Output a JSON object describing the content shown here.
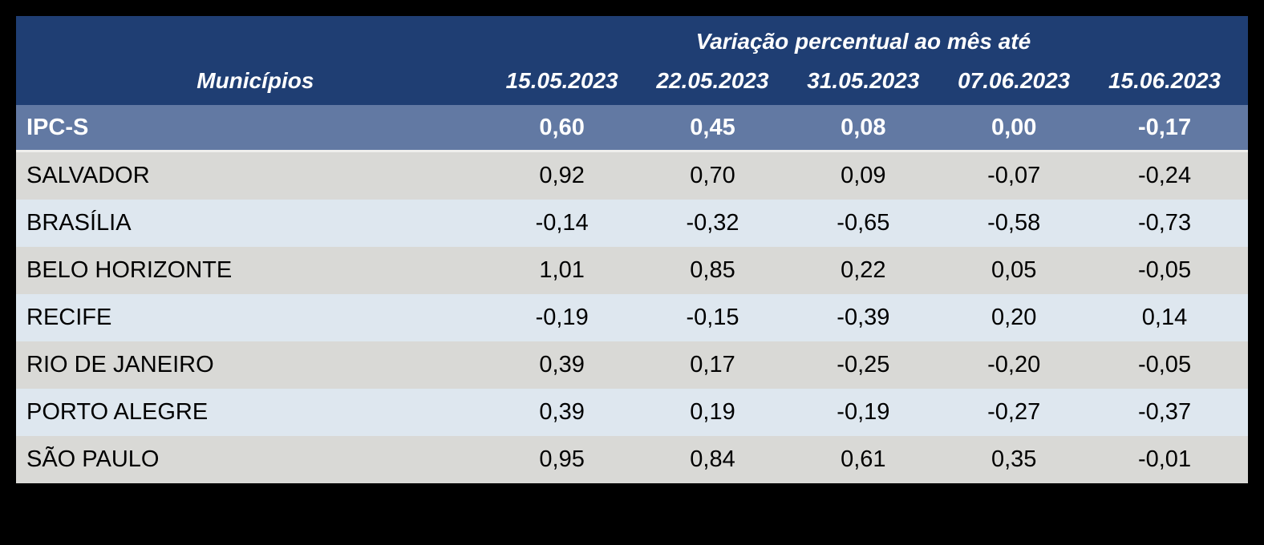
{
  "table": {
    "group_header": "Variação percentual ao mês até",
    "columns": {
      "municipios": "Municípios",
      "dates": [
        "15.05.2023",
        "22.05.2023",
        "31.05.2023",
        "07.06.2023",
        "15.06.2023"
      ]
    },
    "summary_row": {
      "label": "IPC-S",
      "values": [
        "0,60",
        "0,45",
        "0,08",
        "0,00",
        "-0,17"
      ]
    },
    "rows": [
      {
        "label": "SALVADOR",
        "values": [
          "0,92",
          "0,70",
          "0,09",
          "-0,07",
          "-0,24"
        ]
      },
      {
        "label": "BRASÍLIA",
        "values": [
          "-0,14",
          "-0,32",
          "-0,65",
          "-0,58",
          "-0,73"
        ]
      },
      {
        "label": "BELO HORIZONTE",
        "values": [
          "1,01",
          "0,85",
          "0,22",
          "0,05",
          "-0,05"
        ]
      },
      {
        "label": "RECIFE",
        "values": [
          "-0,19",
          "-0,15",
          "-0,39",
          "0,20",
          "0,14"
        ]
      },
      {
        "label": "RIO DE JANEIRO",
        "values": [
          "0,39",
          "0,17",
          "-0,25",
          "-0,20",
          "-0,05"
        ]
      },
      {
        "label": "PORTO ALEGRE",
        "values": [
          "0,39",
          "0,19",
          "-0,19",
          "-0,27",
          "-0,37"
        ]
      },
      {
        "label": "SÃO PAULO",
        "values": [
          "0,95",
          "0,84",
          "0,61",
          "0,35",
          "-0,01"
        ]
      }
    ],
    "colors": {
      "page_bg": "#000000",
      "header_bg": "#1f3e73",
      "header_text": "#ffffff",
      "summary_bg": "#6279a3",
      "row_gray": "#d9d9d6",
      "row_blue": "#dee7ef",
      "body_text": "#000000",
      "separator": "#efefed"
    },
    "chart_data": {
      "type": "table",
      "title": "Variação percentual ao mês até",
      "categories": [
        "15.05.2023",
        "22.05.2023",
        "31.05.2023",
        "07.06.2023",
        "15.06.2023"
      ],
      "series": [
        {
          "name": "IPC-S",
          "values": [
            0.6,
            0.45,
            0.08,
            0.0,
            -0.17
          ]
        },
        {
          "name": "SALVADOR",
          "values": [
            0.92,
            0.7,
            0.09,
            -0.07,
            -0.24
          ]
        },
        {
          "name": "BRASÍLIA",
          "values": [
            -0.14,
            -0.32,
            -0.65,
            -0.58,
            -0.73
          ]
        },
        {
          "name": "BELO HORIZONTE",
          "values": [
            1.01,
            0.85,
            0.22,
            0.05,
            -0.05
          ]
        },
        {
          "name": "RECIFE",
          "values": [
            -0.19,
            -0.15,
            -0.39,
            0.2,
            0.14
          ]
        },
        {
          "name": "RIO DE JANEIRO",
          "values": [
            0.39,
            0.17,
            -0.25,
            -0.2,
            -0.05
          ]
        },
        {
          "name": "PORTO ALEGRE",
          "values": [
            0.39,
            0.19,
            -0.19,
            -0.27,
            -0.37
          ]
        },
        {
          "name": "SÃO PAULO",
          "values": [
            0.95,
            0.84,
            0.61,
            0.35,
            -0.01
          ]
        }
      ]
    }
  }
}
